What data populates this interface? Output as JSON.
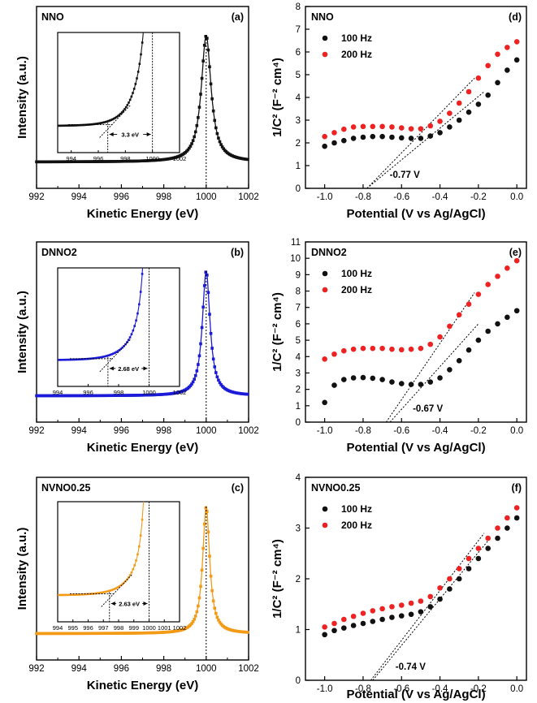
{
  "colors": {
    "nno": "#111111",
    "dnno2": "#1a1ad8",
    "nvno": "#f39a17",
    "hz100": "#111111",
    "hz200": "#ee2222"
  },
  "chart_data": [
    {
      "id": "a",
      "type": "line",
      "panel_label": "(a)",
      "sample": "NNO",
      "xlabel": "Kinetic Energy (eV)",
      "ylabel": "Intensity (a.u.)",
      "xlim": [
        992,
        1002
      ],
      "xticks": [
        "992",
        "994",
        "996",
        "998",
        "1000",
        "1002"
      ],
      "series": [
        {
          "name": "NNO",
          "color_key": "nno",
          "peak_x": 1000,
          "width": 0.28,
          "base": 0.04,
          "peak": 1.0
        }
      ],
      "inset": {
        "xlim": [
          993,
          1002
        ],
        "xticks": [
          "994",
          "996",
          "998",
          "1000",
          "1002"
        ],
        "gap_label": "3.3 eV",
        "edge_x": 996.7,
        "ref_x": 1000
      }
    },
    {
      "id": "b",
      "type": "line",
      "panel_label": "(b)",
      "sample": "DNNO2",
      "xlabel": "Kinetic Energy (eV)",
      "ylabel": "Intensity (a.u.)",
      "xlim": [
        992,
        1002
      ],
      "xticks": [
        "992",
        "994",
        "996",
        "998",
        "1000",
        "1002"
      ],
      "series": [
        {
          "name": "DNNO2",
          "color_key": "dnno2",
          "peak_x": 1000,
          "width": 0.22,
          "base": 0.04,
          "peak": 1.0
        }
      ],
      "inset": {
        "xlim": [
          994,
          1002
        ],
        "xticks": [
          "994",
          "996",
          "998",
          "1000",
          "1002"
        ],
        "gap_label": "2.68 eV",
        "edge_x": 997.3,
        "ref_x": 1000
      }
    },
    {
      "id": "c",
      "type": "line",
      "panel_label": "(c)",
      "sample": "NVNO0.25",
      "xlabel": "Kinetic Energy (eV)",
      "ylabel": "Intensity (a.u.)",
      "xlim": [
        992,
        1002
      ],
      "xticks": [
        "992",
        "994",
        "996",
        "998",
        "1000",
        "1002"
      ],
      "series": [
        {
          "name": "NVNO0.25",
          "color_key": "nvno",
          "peak_x": 1000,
          "width": 0.2,
          "base": 0.04,
          "peak": 1.0
        }
      ],
      "inset": {
        "xlim": [
          994,
          1002
        ],
        "xticks": [
          "994",
          "995",
          "996",
          "997",
          "998",
          "999",
          "1000",
          "1001",
          "1002"
        ],
        "gap_label": "2.63 eV",
        "edge_x": 997.4,
        "ref_x": 1000
      }
    },
    {
      "id": "d",
      "type": "scatter",
      "panel_label": "(d)",
      "sample": "NNO",
      "xlabel": "Potential (V vs Ag/AgCl)",
      "ylabel": "1/C² (F⁻² cm⁴)",
      "xlim": [
        -1.1,
        0.05
      ],
      "ylim": [
        0,
        8
      ],
      "xticks": [
        "-1.0",
        "-0.8",
        "-0.6",
        "-0.4",
        "-0.2",
        "0.0"
      ],
      "yticks": [
        "0",
        "1",
        "2",
        "3",
        "4",
        "5",
        "6",
        "7",
        "8"
      ],
      "x": [
        -1.0,
        -0.95,
        -0.9,
        -0.85,
        -0.8,
        -0.75,
        -0.7,
        -0.65,
        -0.6,
        -0.55,
        -0.5,
        -0.45,
        -0.4,
        -0.35,
        -0.3,
        -0.25,
        -0.2,
        -0.15,
        -0.1,
        -0.05,
        0.0
      ],
      "series": [
        {
          "name": "100 Hz",
          "color_key": "hz100",
          "values": [
            1.85,
            2.0,
            2.1,
            2.2,
            2.25,
            2.28,
            2.28,
            2.25,
            2.22,
            2.2,
            2.2,
            2.3,
            2.45,
            2.7,
            3.0,
            3.35,
            3.7,
            4.1,
            4.65,
            5.2,
            5.65
          ],
          "fit": [
            [
              -0.78,
              0
            ],
            [
              -0.17,
              4.25
            ]
          ]
        },
        {
          "name": "200 Hz",
          "color_key": "hz200",
          "values": [
            2.28,
            2.45,
            2.6,
            2.7,
            2.72,
            2.72,
            2.72,
            2.7,
            2.66,
            2.62,
            2.62,
            2.75,
            2.95,
            3.3,
            3.75,
            4.25,
            4.85,
            5.4,
            5.9,
            6.2,
            6.45
          ],
          "fit": [
            [
              -0.78,
              0
            ],
            [
              -0.22,
              4.85
            ]
          ]
        }
      ],
      "annotation": "-0.77 V"
    },
    {
      "id": "e",
      "type": "scatter",
      "panel_label": "(e)",
      "sample": "DNNO2",
      "xlabel": "Potential (V vs Ag/AgCl)",
      "ylabel": "1/C² (F⁻² cm⁴)",
      "xlim": [
        -1.1,
        0.05
      ],
      "ylim": [
        0,
        11
      ],
      "xticks": [
        "-1.0",
        "-0.8",
        "-0.6",
        "-0.4",
        "-0.2",
        "0.0"
      ],
      "yticks": [
        "0",
        "1",
        "2",
        "3",
        "4",
        "5",
        "6",
        "7",
        "8",
        "9",
        "10",
        "11"
      ],
      "x": [
        -1.0,
        -0.95,
        -0.9,
        -0.85,
        -0.8,
        -0.75,
        -0.7,
        -0.65,
        -0.6,
        -0.55,
        -0.5,
        -0.45,
        -0.4,
        -0.35,
        -0.3,
        -0.25,
        -0.2,
        -0.15,
        -0.1,
        -0.05,
        0.0
      ],
      "series": [
        {
          "name": "100 Hz",
          "color_key": "hz100",
          "values": [
            1.2,
            2.25,
            2.6,
            2.7,
            2.72,
            2.68,
            2.6,
            2.45,
            2.35,
            2.3,
            2.3,
            2.45,
            2.7,
            3.2,
            3.75,
            4.4,
            5.0,
            5.55,
            6.0,
            6.4,
            6.8
          ],
          "fit": [
            [
              -0.66,
              0
            ],
            [
              -0.2,
              6.0
            ]
          ]
        },
        {
          "name": "200 Hz",
          "color_key": "hz200",
          "values": [
            3.85,
            4.15,
            4.35,
            4.45,
            4.5,
            4.5,
            4.5,
            4.45,
            4.42,
            4.45,
            4.5,
            4.75,
            5.2,
            5.85,
            6.55,
            7.2,
            7.8,
            8.4,
            8.9,
            9.4,
            9.85
          ],
          "fit": [
            [
              -0.68,
              0
            ],
            [
              -0.22,
              7.9
            ]
          ]
        }
      ],
      "annotation": "-0.67 V"
    },
    {
      "id": "f",
      "type": "scatter",
      "panel_label": "(f)",
      "sample": "NVNO0.25",
      "xlabel": "Potential (V vs Ag/AgCl)",
      "ylabel": "1/C² (F⁻² cm⁴)",
      "xlim": [
        -1.1,
        0.05
      ],
      "ylim": [
        0,
        4
      ],
      "xticks": [
        "-1.0",
        "-0.8",
        "-0.6",
        "-0.4",
        "-0.2",
        "0.0"
      ],
      "yticks": [
        "0",
        "1",
        "2",
        "3",
        "4"
      ],
      "x": [
        -1.0,
        -0.95,
        -0.9,
        -0.85,
        -0.8,
        -0.75,
        -0.7,
        -0.65,
        -0.6,
        -0.55,
        -0.5,
        -0.45,
        -0.4,
        -0.35,
        -0.3,
        -0.25,
        -0.2,
        -0.15,
        -0.1,
        -0.05,
        0.0
      ],
      "series": [
        {
          "name": "100 Hz",
          "color_key": "hz100",
          "values": [
            0.9,
            0.98,
            1.03,
            1.08,
            1.12,
            1.16,
            1.2,
            1.24,
            1.27,
            1.3,
            1.35,
            1.45,
            1.6,
            1.8,
            2.0,
            2.2,
            2.4,
            2.6,
            2.8,
            3.0,
            3.2
          ],
          "fit": [
            [
              -0.75,
              0
            ],
            [
              -0.15,
              2.75
            ]
          ]
        },
        {
          "name": "200 Hz",
          "color_key": "hz200",
          "values": [
            1.05,
            1.12,
            1.2,
            1.26,
            1.32,
            1.37,
            1.41,
            1.45,
            1.48,
            1.52,
            1.56,
            1.65,
            1.82,
            2.0,
            2.2,
            2.4,
            2.6,
            2.8,
            3.0,
            3.2,
            3.4
          ],
          "fit": [
            [
              -0.76,
              0
            ],
            [
              -0.17,
              2.9
            ]
          ]
        }
      ],
      "annotation": "-0.74 V"
    }
  ]
}
